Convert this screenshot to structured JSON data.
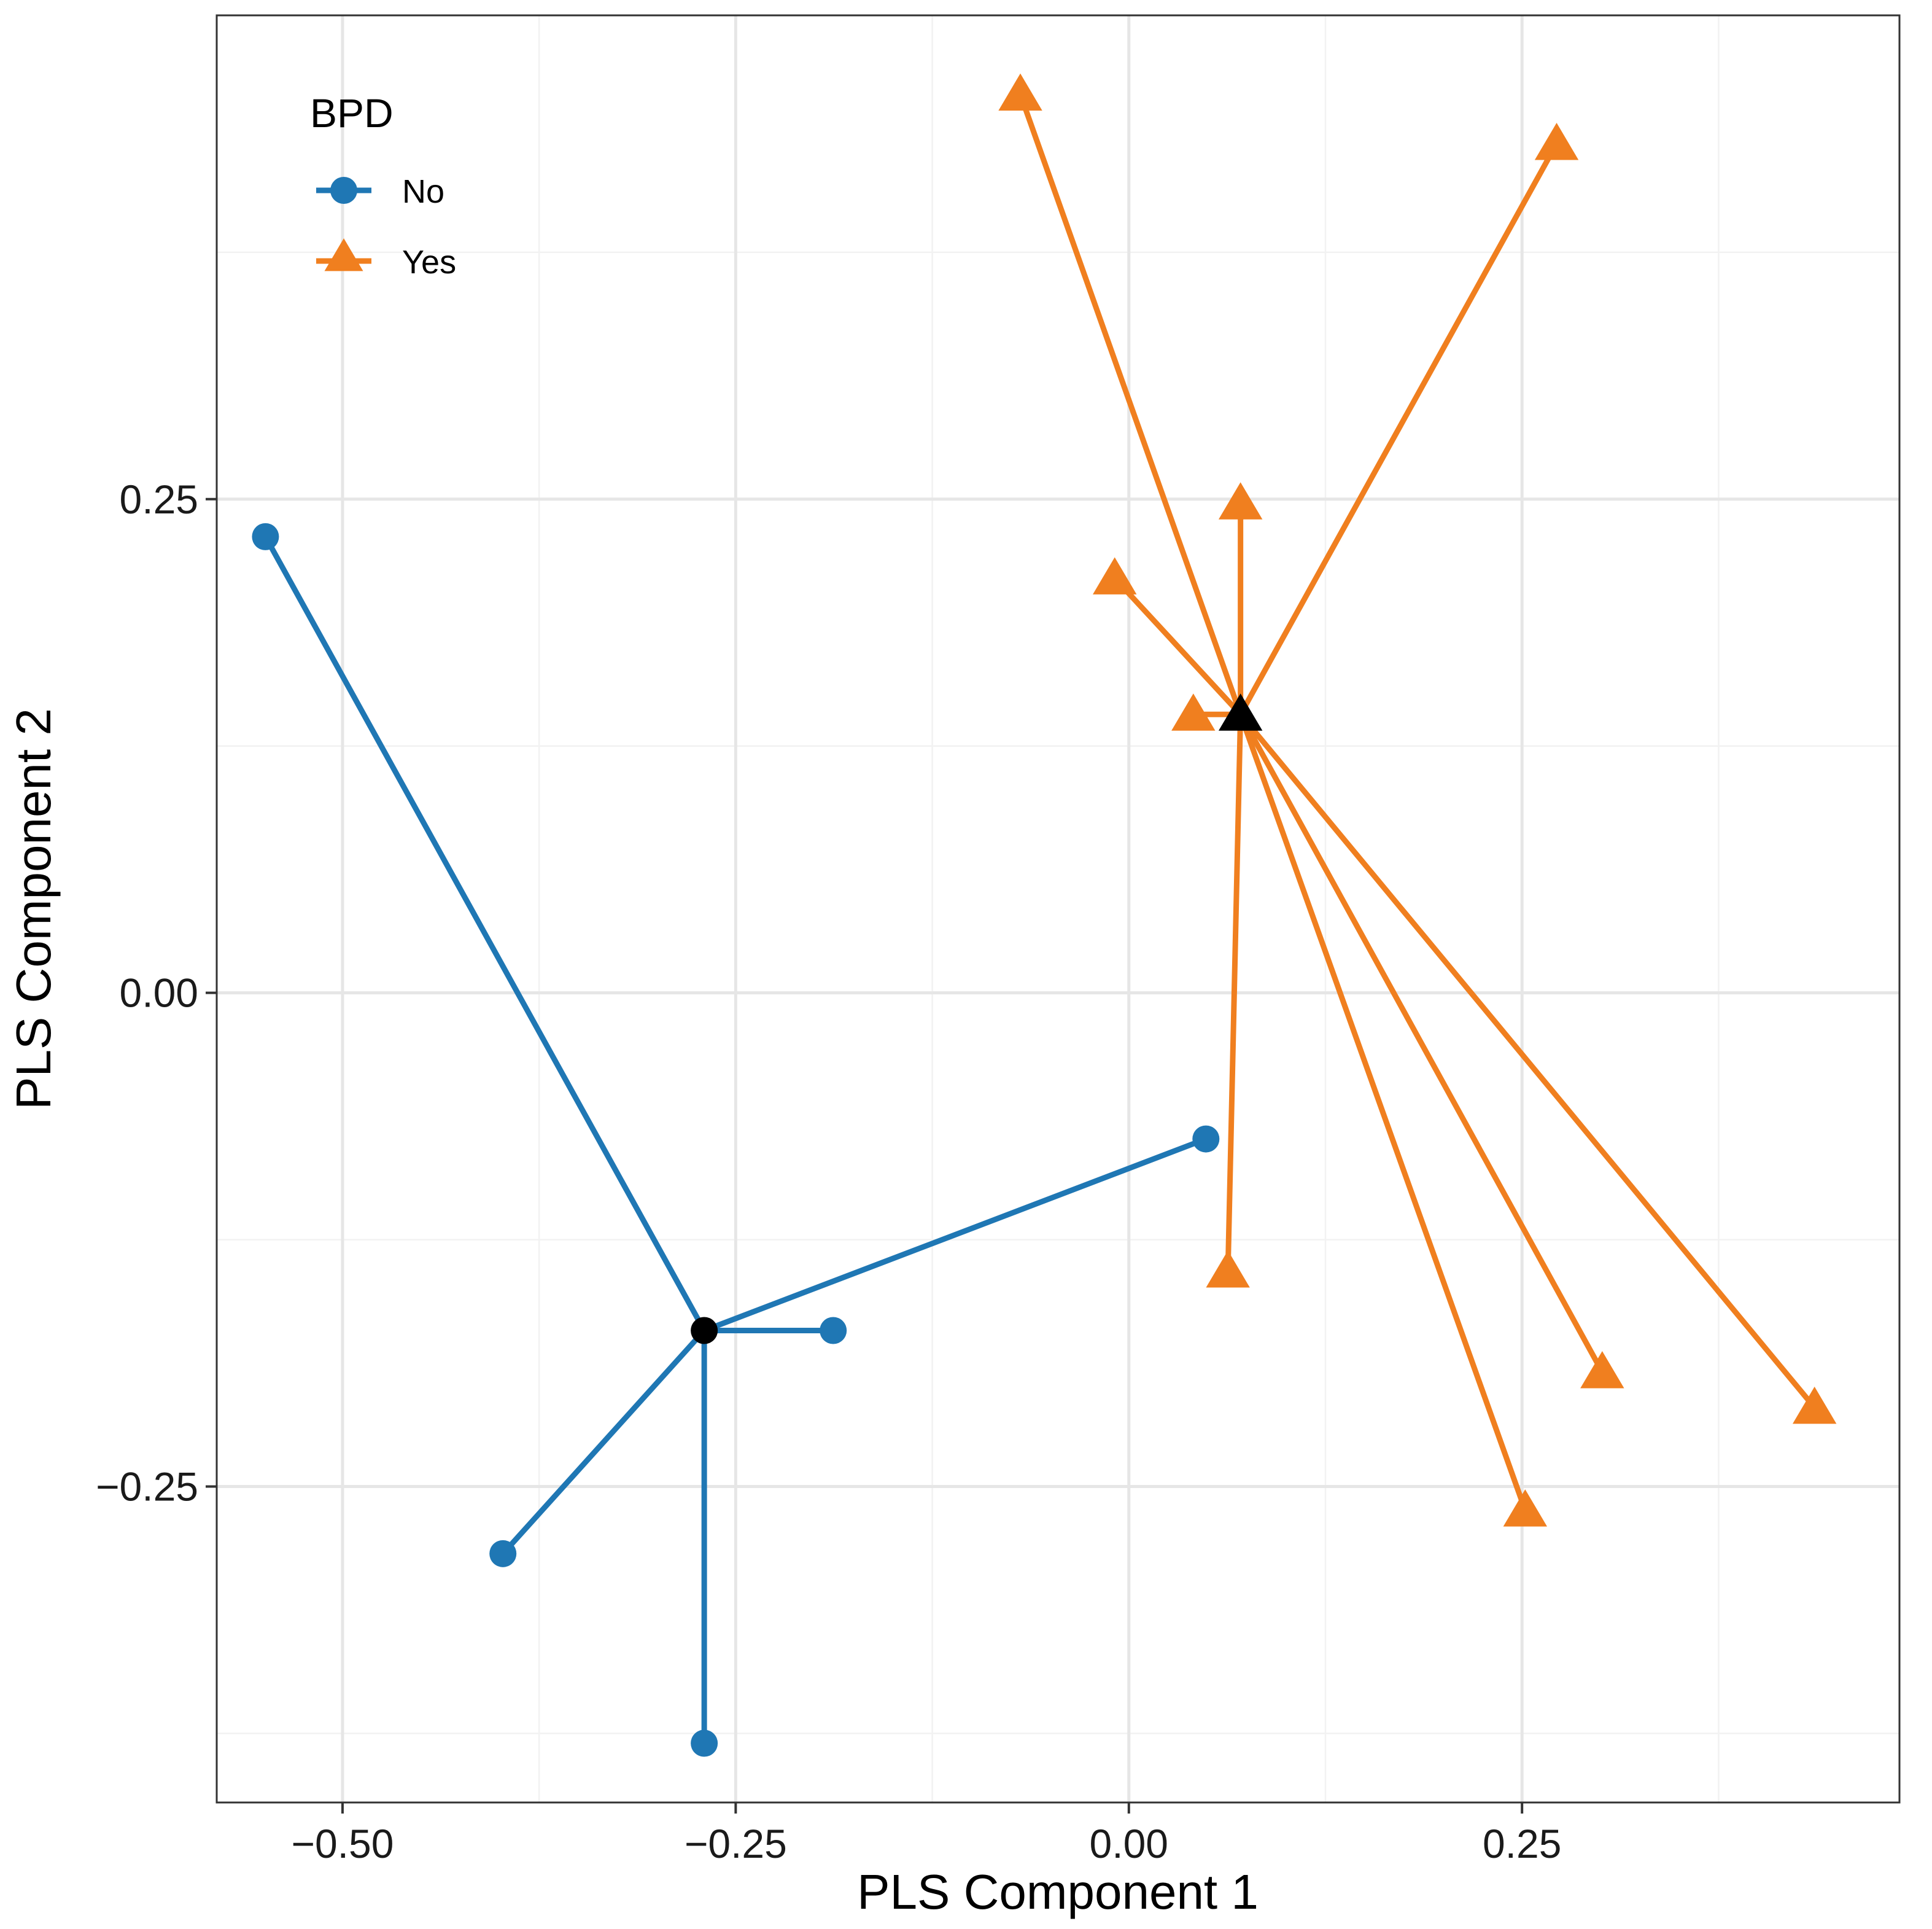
{
  "chart_data": {
    "type": "scatter",
    "subtype": "spider plot (group centroids with segments to points)",
    "xlabel": "PLS Component 1",
    "ylabel": "PLS Component 2",
    "xlim": [
      -0.58,
      0.49
    ],
    "ylim": [
      -0.41,
      0.495
    ],
    "x_ticks": [
      -0.5,
      -0.25,
      0.0,
      0.25
    ],
    "x_tick_labels": [
      "−0.50",
      "−0.25",
      "0.00",
      "0.25"
    ],
    "y_ticks": [
      -0.25,
      0.0,
      0.25
    ],
    "y_tick_labels": [
      "−0.25",
      "0.00",
      "0.25"
    ],
    "grid": true,
    "legend": {
      "title": "BPD",
      "position": "top-left",
      "entries": [
        {
          "label": "No",
          "marker": "circle",
          "color": "#1f77b4"
        },
        {
          "label": "Yes",
          "marker": "triangle",
          "color": "#f07f1f"
        }
      ]
    },
    "series": [
      {
        "name": "No",
        "marker": "circle",
        "color": "#1f77b4",
        "centroid": {
          "x": -0.27,
          "y": -0.171
        },
        "points": [
          {
            "x": -0.549,
            "y": 0.231
          },
          {
            "x": 0.049,
            "y": -0.074
          },
          {
            "x": -0.188,
            "y": -0.171
          },
          {
            "x": -0.398,
            "y": -0.284
          },
          {
            "x": -0.27,
            "y": -0.38
          }
        ]
      },
      {
        "name": "Yes",
        "marker": "triangle",
        "color": "#f07f1f",
        "centroid": {
          "x": 0.071,
          "y": 0.141
        },
        "points": [
          {
            "x": -0.069,
            "y": 0.455
          },
          {
            "x": 0.272,
            "y": 0.43
          },
          {
            "x": 0.071,
            "y": 0.248
          },
          {
            "x": -0.009,
            "y": 0.21
          },
          {
            "x": 0.041,
            "y": 0.141
          },
          {
            "x": 0.063,
            "y": -0.141
          },
          {
            "x": 0.301,
            "y": -0.192
          },
          {
            "x": 0.436,
            "y": -0.21
          },
          {
            "x": 0.252,
            "y": -0.262
          }
        ]
      }
    ]
  }
}
